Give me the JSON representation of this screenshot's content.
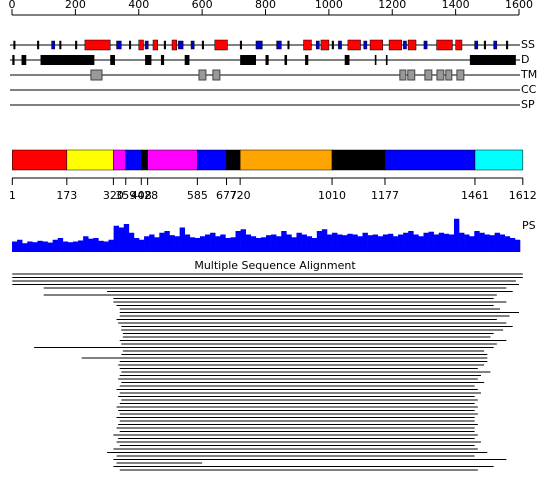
{
  "ruler": {
    "xlim": [
      0,
      1600
    ],
    "xticks": [
      0,
      200,
      400,
      600,
      800,
      1000,
      1200,
      1400,
      1600
    ]
  },
  "tracks": {
    "labels": [
      "SS",
      "D",
      "TM",
      "CC",
      "SP"
    ],
    "ss": [
      {
        "start": 5,
        "end": 10,
        "color": "#000000"
      },
      {
        "start": 80,
        "end": 85,
        "color": "#000000"
      },
      {
        "start": 125,
        "end": 135,
        "color": "#0000cc"
      },
      {
        "start": 150,
        "end": 155,
        "color": "#000000"
      },
      {
        "start": 200,
        "end": 205,
        "color": "#000000"
      },
      {
        "start": 230,
        "end": 310,
        "color": "#ff0000"
      },
      {
        "start": 330,
        "end": 345,
        "color": "#0000cc"
      },
      {
        "start": 370,
        "end": 375,
        "color": "#000000"
      },
      {
        "start": 400,
        "end": 415,
        "color": "#ff0000"
      },
      {
        "start": 420,
        "end": 430,
        "color": "#0000cc"
      },
      {
        "start": 445,
        "end": 460,
        "color": "#ff0000"
      },
      {
        "start": 480,
        "end": 485,
        "color": "#000000"
      },
      {
        "start": 505,
        "end": 520,
        "color": "#ff0000"
      },
      {
        "start": 525,
        "end": 540,
        "color": "#0000cc"
      },
      {
        "start": 565,
        "end": 575,
        "color": "#0000cc"
      },
      {
        "start": 600,
        "end": 605,
        "color": "#000000"
      },
      {
        "start": 640,
        "end": 680,
        "color": "#ff0000"
      },
      {
        "start": 720,
        "end": 725,
        "color": "#000000"
      },
      {
        "start": 770,
        "end": 790,
        "color": "#0000cc"
      },
      {
        "start": 835,
        "end": 850,
        "color": "#0000cc"
      },
      {
        "start": 870,
        "end": 875,
        "color": "#000000"
      },
      {
        "start": 920,
        "end": 945,
        "color": "#ff0000"
      },
      {
        "start": 960,
        "end": 970,
        "color": "#0000cc"
      },
      {
        "start": 975,
        "end": 1000,
        "color": "#ff0000"
      },
      {
        "start": 1010,
        "end": 1015,
        "color": "#000000"
      },
      {
        "start": 1030,
        "end": 1040,
        "color": "#0000cc"
      },
      {
        "start": 1060,
        "end": 1100,
        "color": "#ff0000"
      },
      {
        "start": 1110,
        "end": 1120,
        "color": "#0000cc"
      },
      {
        "start": 1130,
        "end": 1170,
        "color": "#ff0000"
      },
      {
        "start": 1190,
        "end": 1230,
        "color": "#ff0000"
      },
      {
        "start": 1235,
        "end": 1245,
        "color": "#0000cc"
      },
      {
        "start": 1250,
        "end": 1275,
        "color": "#ff0000"
      },
      {
        "start": 1300,
        "end": 1310,
        "color": "#0000cc"
      },
      {
        "start": 1340,
        "end": 1390,
        "color": "#ff0000"
      },
      {
        "start": 1400,
        "end": 1420,
        "color": "#ff0000"
      },
      {
        "start": 1460,
        "end": 1470,
        "color": "#0000cc"
      },
      {
        "start": 1490,
        "end": 1495,
        "color": "#000000"
      },
      {
        "start": 1520,
        "end": 1530,
        "color": "#0000cc"
      },
      {
        "start": 1560,
        "end": 1565,
        "color": "#000000"
      }
    ],
    "disorder": [
      [
        1,
        8
      ],
      [
        30,
        45
      ],
      [
        90,
        260
      ],
      [
        310,
        325
      ],
      [
        420,
        440
      ],
      [
        470,
        480
      ],
      [
        545,
        560
      ],
      [
        720,
        770
      ],
      [
        800,
        810
      ],
      [
        860,
        868
      ],
      [
        925,
        935
      ],
      [
        1050,
        1065
      ],
      [
        1145,
        1150
      ],
      [
        1180,
        1185
      ],
      [
        1445,
        1590
      ]
    ],
    "tm": [
      [
        249,
        284
      ],
      [
        590,
        612
      ],
      [
        634,
        656
      ],
      [
        1224,
        1243
      ],
      [
        1249,
        1271
      ],
      [
        1303,
        1325
      ],
      [
        1341,
        1363
      ],
      [
        1369,
        1388
      ],
      [
        1404,
        1426
      ]
    ]
  },
  "domains": {
    "boundaries": [
      1,
      173,
      320,
      359,
      408,
      428,
      585,
      677,
      720,
      1010,
      1177,
      1461,
      1612
    ],
    "colors": [
      "#ff0000",
      "#ffff00",
      "#ff00ff",
      "#0000ff",
      "#000000",
      "#ff00ff",
      "#0000ff",
      "#000000",
      "#ffa500",
      "#000000",
      "#0000ff",
      "#00ffff"
    ]
  },
  "ps": {
    "label": "PS",
    "color": "#0000ff",
    "values": [
      0.3,
      0.35,
      0.25,
      0.3,
      0.28,
      0.32,
      0.3,
      0.27,
      0.35,
      0.4,
      0.3,
      0.28,
      0.3,
      0.33,
      0.45,
      0.38,
      0.4,
      0.32,
      0.3,
      0.35,
      0.75,
      0.7,
      0.8,
      0.55,
      0.4,
      0.35,
      0.45,
      0.5,
      0.42,
      0.55,
      0.6,
      0.48,
      0.45,
      0.7,
      0.5,
      0.42,
      0.4,
      0.45,
      0.5,
      0.55,
      0.45,
      0.5,
      0.4,
      0.42,
      0.6,
      0.65,
      0.5,
      0.45,
      0.4,
      0.42,
      0.48,
      0.5,
      0.45,
      0.6,
      0.5,
      0.42,
      0.55,
      0.5,
      0.45,
      0.4,
      0.6,
      0.65,
      0.5,
      0.55,
      0.5,
      0.48,
      0.52,
      0.5,
      0.45,
      0.55,
      0.48,
      0.5,
      0.45,
      0.5,
      0.52,
      0.45,
      0.5,
      0.55,
      0.6,
      0.5,
      0.45,
      0.55,
      0.58,
      0.5,
      0.55,
      0.52,
      0.5,
      0.95,
      0.55,
      0.5,
      0.45,
      0.6,
      0.55,
      0.5,
      0.48,
      0.55,
      0.5,
      0.45,
      0.4,
      0.35
    ]
  },
  "msa": {
    "title": "Multiple Sequence Alignment",
    "rows": [
      [
        1,
        1612
      ],
      [
        1,
        1612
      ],
      [
        1,
        1590
      ],
      [
        1,
        1600
      ],
      [
        100,
        1560
      ],
      [
        300,
        1580
      ],
      [
        100,
        1530
      ],
      [
        320,
        1520
      ],
      [
        320,
        1560
      ],
      [
        330,
        1520
      ],
      [
        340,
        1540
      ],
      [
        340,
        1600
      ],
      [
        340,
        1570
      ],
      [
        330,
        1530
      ],
      [
        335,
        1560
      ],
      [
        345,
        1580
      ],
      [
        345,
        1550
      ],
      [
        350,
        1520
      ],
      [
        350,
        1510
      ],
      [
        340,
        1560
      ],
      [
        345,
        1530
      ],
      [
        70,
        1520
      ],
      [
        350,
        1490
      ],
      [
        345,
        1500
      ],
      [
        220,
        1500
      ],
      [
        340,
        1500
      ],
      [
        335,
        1490
      ],
      [
        340,
        1470
      ],
      [
        345,
        1510
      ],
      [
        340,
        1480
      ],
      [
        335,
        1470
      ],
      [
        345,
        1490
      ],
      [
        340,
        1460
      ],
      [
        330,
        1470
      ],
      [
        340,
        1480
      ],
      [
        335,
        1460
      ],
      [
        345,
        1470
      ],
      [
        340,
        1460
      ],
      [
        330,
        1470
      ],
      [
        335,
        1460
      ],
      [
        340,
        1470
      ],
      [
        330,
        1460
      ],
      [
        340,
        1460
      ],
      [
        335,
        1470
      ],
      [
        330,
        1460
      ],
      [
        340,
        1460
      ],
      [
        320,
        1470
      ],
      [
        335,
        1460
      ],
      [
        330,
        1480
      ],
      [
        340,
        1460
      ],
      [
        320,
        1470
      ],
      [
        300,
        1500
      ],
      [
        330,
        1460
      ],
      [
        320,
        1560
      ],
      [
        330,
        600
      ],
      [
        320,
        1520
      ],
      [
        340,
        1470
      ]
    ]
  }
}
